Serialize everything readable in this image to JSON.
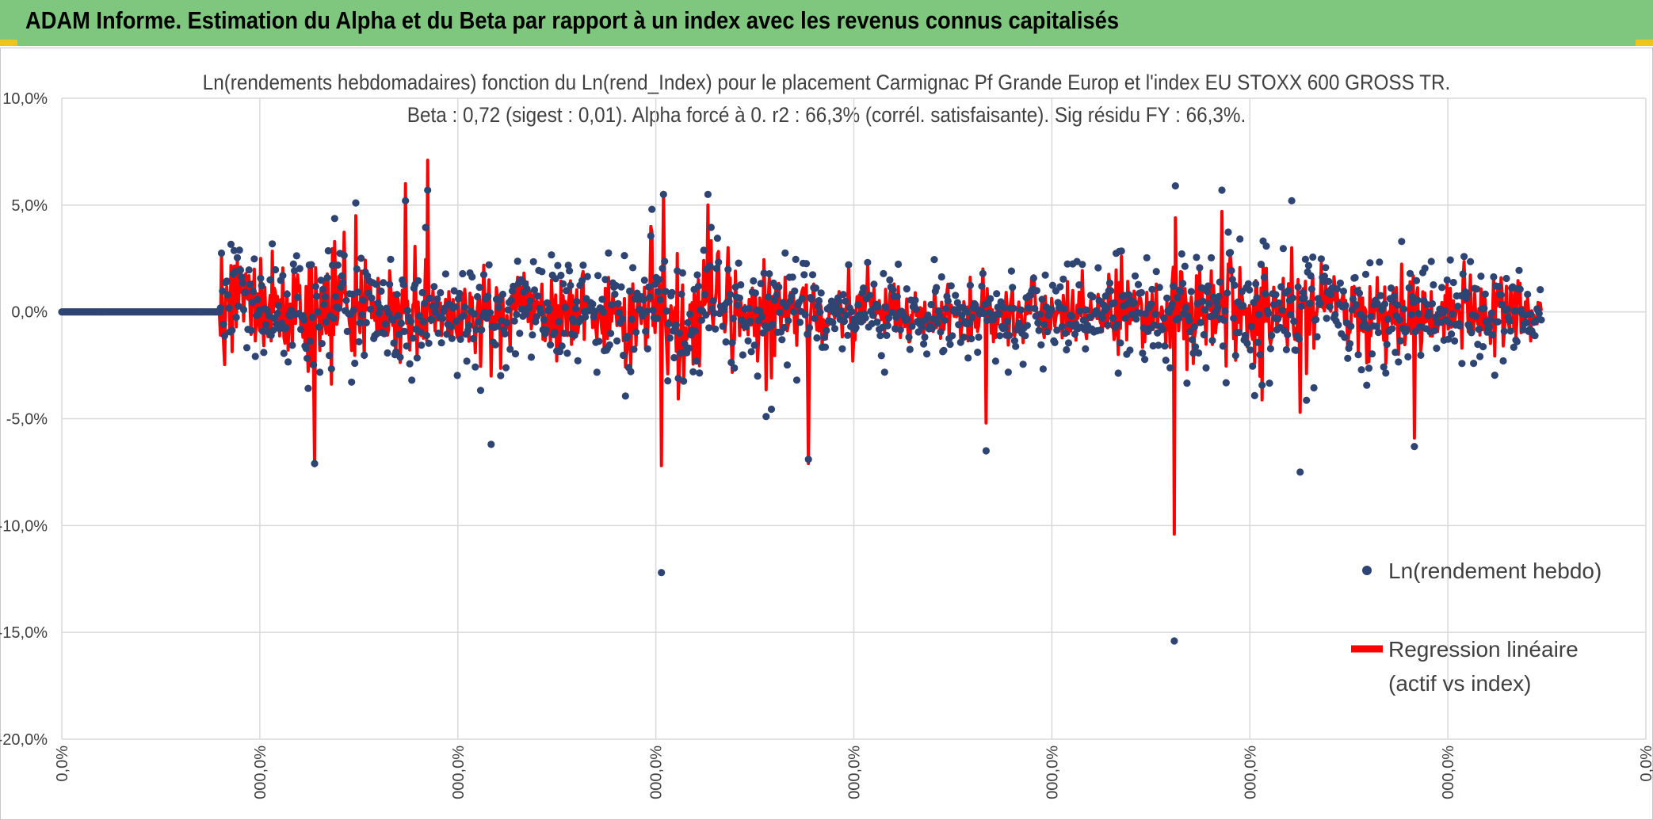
{
  "header": {
    "title": "ADAM Informe. Estimation du Alpha et du Beta par rapport à un index avec les revenus connus capitalisés",
    "background": "#7fc77e"
  },
  "chart_data": {
    "type": "scatter",
    "title_line1": "Ln(rendements hebdomadaires) fonction du Ln(rend_Index) pour le placement Carmignac Pf Grande Europ et l'index EU STOXX 600 GROSS TR.",
    "title_line2": "Beta : 0,72 (sigest : 0,01). Alpha forcé à 0. r2 : 66,3% (corrél. satisfaisante). Sig résidu FY : 66,3%.",
    "ylim": [
      -0.2,
      0.1
    ],
    "y_ticks": [
      {
        "value": 0.1,
        "label": "10,0%"
      },
      {
        "value": 0.05,
        "label": "5,0%"
      },
      {
        "value": 0.0,
        "label": "0,0%"
      },
      {
        "value": -0.05,
        "label": "-5,0%"
      },
      {
        "value": -0.1,
        "label": "-10,0%"
      },
      {
        "value": -0.15,
        "label": "-15,0%"
      },
      {
        "value": -0.2,
        "label": "-20,0%"
      }
    ],
    "x_tick_labels": [
      "0,0%",
      "000,0%",
      "000,0%",
      "000,0%",
      "000,0%",
      "000,0%",
      "000,0%",
      "000,0%",
      "0,0%"
    ],
    "n_points": 1400,
    "zero_run_points": 150,
    "beta": 0.72,
    "series": [
      {
        "name": "Ln(rendement hebdo)",
        "kind": "points",
        "color": "#2e4473",
        "notable_values": [
          0.059,
          0.057,
          0.055,
          0.052,
          0.051,
          0.046,
          -0.062,
          -0.071,
          -0.122,
          -0.154,
          -0.086,
          -0.075,
          -0.069,
          -0.065,
          -0.063,
          -0.055
        ]
      },
      {
        "name": "Regression linéaire (actif vs index)",
        "kind": "line",
        "color": "#ff0000",
        "notable_values": [
          0.071,
          0.06,
          0.056,
          0.05,
          0.045,
          0.044,
          -0.072,
          -0.072,
          -0.071,
          -0.104,
          -0.059,
          -0.053
        ]
      }
    ],
    "legend": {
      "position": "right",
      "item1": "Ln(rendement hebdo)",
      "item2_line1": "Regression linéaire",
      "item2_line2": "(actif vs index)"
    },
    "grid": true
  }
}
